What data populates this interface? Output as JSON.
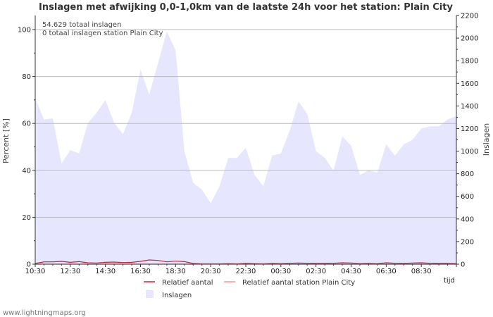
{
  "chart_data": {
    "type": "area",
    "title": "Inslagen met afwijking 0,0-1,0km van de laatste 24h voor het station: Plain City",
    "xlabel": "tijd",
    "ylabel_left": "Percent   [%]",
    "ylabel_right": "Inslagen",
    "ylim_left": [
      0,
      106
    ],
    "ylim_right": [
      0,
      2200
    ],
    "yticks_left": [
      0,
      20,
      40,
      60,
      80,
      100
    ],
    "yticks_right": [
      0,
      200,
      400,
      600,
      800,
      1000,
      1200,
      1400,
      1600,
      1800,
      2000,
      2200
    ],
    "x_tick_labels": [
      "10:30",
      "12:30",
      "14:30",
      "16:30",
      "18:30",
      "20:30",
      "22:30",
      "00:30",
      "02:30",
      "04:30",
      "06:30",
      "08:30"
    ],
    "info_lines": [
      "54.629 totaal inslagen",
      "0 totaal inslagen station Plain City"
    ],
    "legend": {
      "relative": "Relatief aantal",
      "relative_station": "Relatief aantal station Plain City",
      "strikes": "Inslagen"
    },
    "series": [
      {
        "name": "Inslagen",
        "axis": "right",
        "color": "#e6e6ff",
        "values": [
          1470,
          1280,
          1290,
          890,
          1010,
          980,
          1250,
          1340,
          1450,
          1250,
          1150,
          1340,
          1720,
          1500,
          1780,
          2060,
          1890,
          1000,
          720,
          660,
          540,
          690,
          940,
          940,
          1030,
          790,
          690,
          960,
          980,
          1180,
          1440,
          1330,
          1000,
          940,
          830,
          1130,
          1050,
          790,
          830,
          810,
          1060,
          960,
          1060,
          1100,
          1200,
          1220,
          1220,
          1280,
          1310
        ]
      },
      {
        "name": "Relatief aantal",
        "axis": "left",
        "color": "#cc2233",
        "values": [
          0.3,
          1,
          1,
          1.2,
          0.8,
          1.1,
          0.6,
          0.5,
          0.8,
          0.9,
          0.7,
          0.8,
          1.2,
          1.8,
          1.6,
          1,
          1.3,
          1.1,
          0.3,
          0.1,
          0.1,
          0.1,
          0.2,
          0.1,
          0.3,
          0.2,
          0.1,
          0.3,
          0.2,
          0.4,
          0.5,
          0.4,
          0.3,
          0.3,
          0.4,
          0.6,
          0.5,
          0.2,
          0.3,
          0.2,
          0.6,
          0.4,
          0.3,
          0.5,
          0.6,
          0.4,
          0.3,
          0.3,
          0.2
        ]
      },
      {
        "name": "Relatief aantal station Plain City",
        "axis": "left",
        "color": "#ee9999",
        "values": [
          0,
          0,
          0,
          0,
          0,
          0,
          0,
          0,
          0,
          0,
          0,
          0,
          0,
          0,
          0,
          0,
          0,
          0,
          0,
          0,
          0,
          0,
          0,
          0,
          0,
          0,
          0,
          0,
          0,
          0,
          0,
          0,
          0,
          0,
          0,
          0,
          0,
          0,
          0,
          0,
          0,
          0,
          0,
          0,
          0,
          0,
          0,
          0,
          0
        ]
      }
    ]
  },
  "footer": "www.lightningmaps.org"
}
